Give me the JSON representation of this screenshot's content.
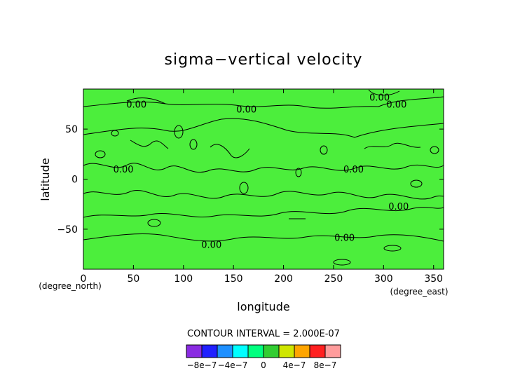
{
  "chart_data": {
    "type": "heatmap",
    "title": "sigma−vertical velocity",
    "xlabel": "longitude",
    "ylabel": "latitude",
    "x_unit": "(degree_east)",
    "y_unit": "(degree_north)",
    "xlim": [
      0,
      360
    ],
    "ylim": [
      -90,
      90
    ],
    "x_ticks": [
      0,
      50,
      100,
      150,
      200,
      250,
      300,
      350
    ],
    "y_ticks": [
      -50,
      0,
      50
    ],
    "contour_label": "0.00",
    "contour_interval_text": "CONTOUR INTERVAL = 2.000E-07",
    "field_value_approx": 0,
    "colorbar": {
      "levels": [
        -1e-06,
        -8e-07,
        -6e-07,
        -4e-07,
        -2e-07,
        0,
        2e-07,
        4e-07,
        6e-07,
        8e-07,
        1e-06
      ],
      "colors": [
        "#8a2be2",
        "#2020ff",
        "#1e90ff",
        "#00ffff",
        "#00ff7f",
        "#32cd32",
        "#cfe600",
        "#ffa500",
        "#ff2020",
        "#ff9c9c"
      ],
      "tick_labels": [
        "−8e−7",
        "−4e−7",
        "0",
        "4e−7",
        "8e−7"
      ]
    },
    "background_color": "#4cee3c",
    "contour_labels": [
      {
        "lon": 53,
        "lat": 75
      },
      {
        "lon": 163,
        "lat": 70
      },
      {
        "lon": 296,
        "lat": 82
      },
      {
        "lon": 313,
        "lat": 75
      },
      {
        "lon": 270,
        "lat": 10
      },
      {
        "lon": 40,
        "lat": 10
      },
      {
        "lon": 315,
        "lat": -27
      },
      {
        "lon": 128,
        "lat": -65
      },
      {
        "lon": 261,
        "lat": -58
      }
    ]
  }
}
